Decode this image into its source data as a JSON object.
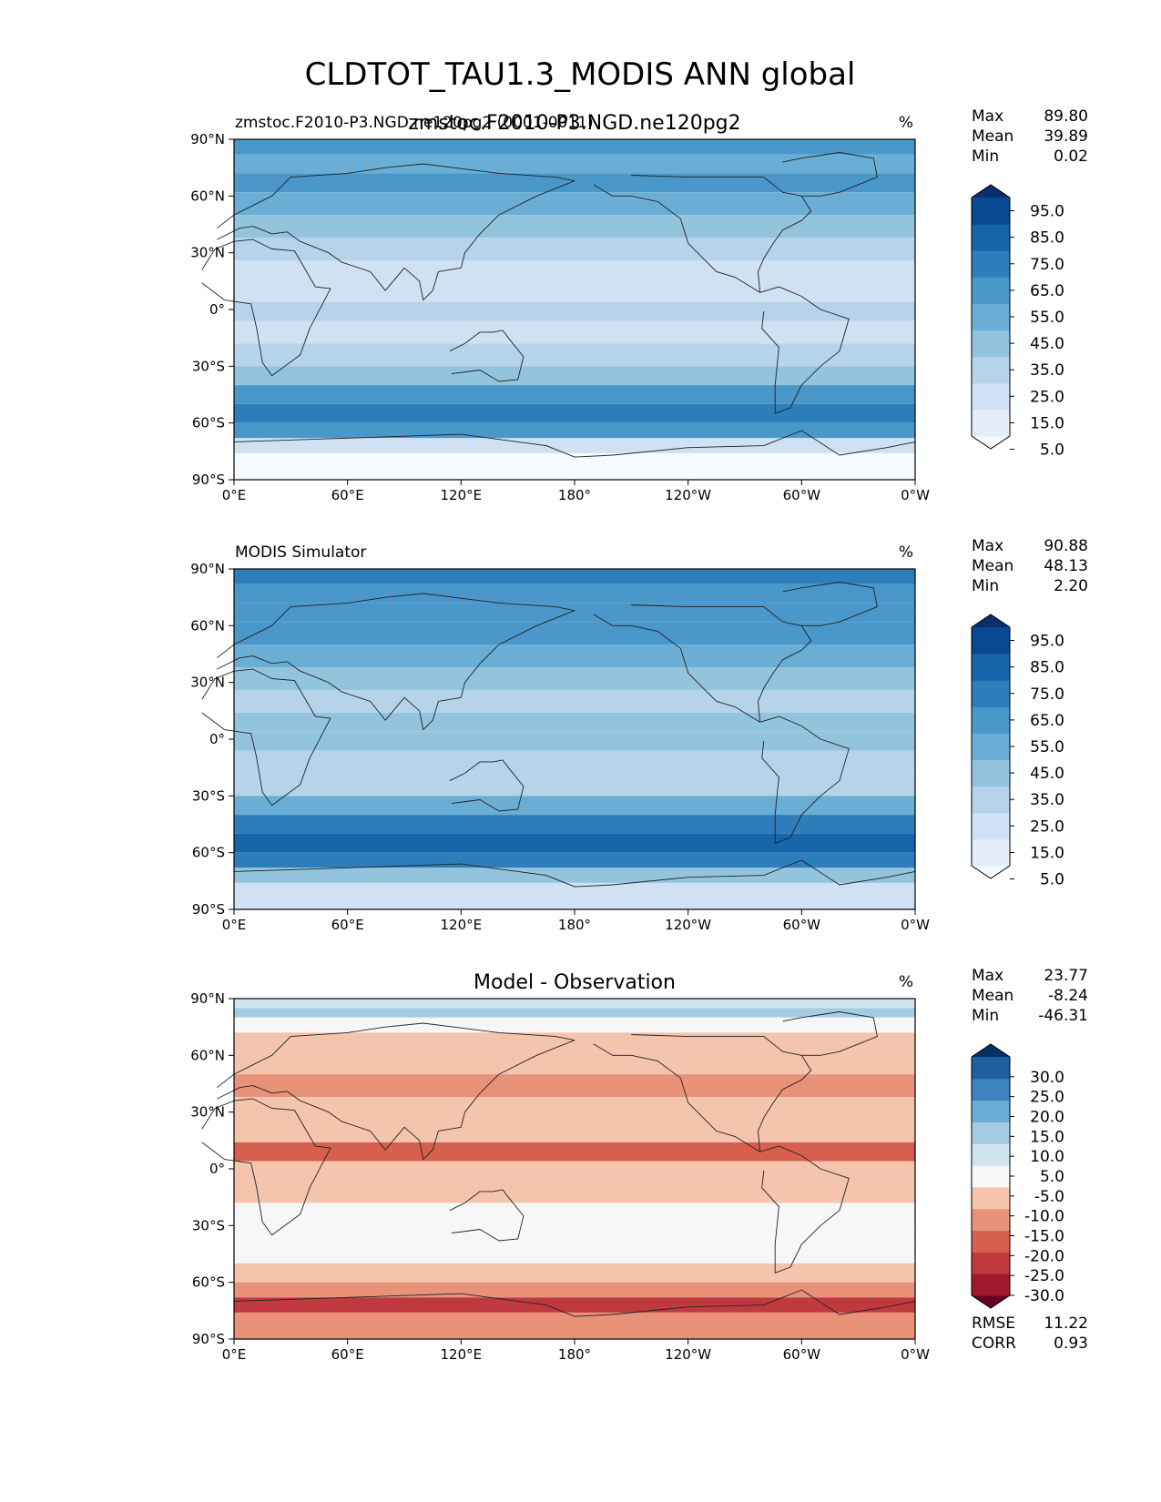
{
  "chart_data": {
    "type": "heatmap",
    "title": "CLDTOT_TAU1.3_MODIS ANN global",
    "x_ticks": [
      "0°E",
      "60°E",
      "120°E",
      "180°",
      "120°W",
      "60°W",
      "0°W"
    ],
    "y_ticks": [
      "90°N",
      "60°N",
      "30°N",
      "0°",
      "30°S",
      "60°S",
      "90°S"
    ],
    "xlim": [
      0,
      360
    ],
    "ylim": [
      -90,
      90
    ],
    "panels": [
      {
        "id": "test",
        "left_label": "zmstoc.F2010-P3.NGD.ne120pg2 (0001-0011)",
        "center_label": "zmstoc.F2010-P3.NGD.ne120pg2",
        "units": "%",
        "stats": [
          {
            "name": "Max",
            "value": "89.80"
          },
          {
            "name": "Mean",
            "value": "39.89"
          },
          {
            "name": "Min",
            "value": "0.02"
          }
        ],
        "colorbar": {
          "ticks": [
            "95.0",
            "85.0",
            "75.0",
            "65.0",
            "55.0",
            "45.0",
            "35.0",
            "25.0",
            "15.0",
            "5.0"
          ],
          "colors": [
            "#f7fbff",
            "#e3eef9",
            "#cfe1f2",
            "#b5d4e9",
            "#93c4de",
            "#6aaed6",
            "#4a98c9",
            "#2e7ebc",
            "#1764ab",
            "#084a91",
            "#08306b"
          ]
        },
        "bands": [
          {
            "lat": [
              90,
              82
            ],
            "value": 65
          },
          {
            "lat": [
              82,
              72
            ],
            "value": 55
          },
          {
            "lat": [
              72,
              62
            ],
            "value": 60
          },
          {
            "lat": [
              62,
              50
            ],
            "value": 55
          },
          {
            "lat": [
              50,
              38
            ],
            "value": 45
          },
          {
            "lat": [
              38,
              26
            ],
            "value": 32
          },
          {
            "lat": [
              26,
              14
            ],
            "value": 22
          },
          {
            "lat": [
              14,
              4
            ],
            "value": 28
          },
          {
            "lat": [
              4,
              -6
            ],
            "value": 32
          },
          {
            "lat": [
              -6,
              -18
            ],
            "value": 28
          },
          {
            "lat": [
              -18,
              -30
            ],
            "value": 32
          },
          {
            "lat": [
              -30,
              -40
            ],
            "value": 48
          },
          {
            "lat": [
              -40,
              -50
            ],
            "value": 68
          },
          {
            "lat": [
              -50,
              -60
            ],
            "value": 78
          },
          {
            "lat": [
              -60,
              -68
            ],
            "value": 62
          },
          {
            "lat": [
              -68,
              -76
            ],
            "value": 25
          },
          {
            "lat": [
              -76,
              -90
            ],
            "value": 8
          }
        ]
      },
      {
        "id": "reference",
        "left_label": "MODIS Simulator",
        "center_label": "",
        "units": "%",
        "stats": [
          {
            "name": "Max",
            "value": "90.88"
          },
          {
            "name": "Mean",
            "value": "48.13"
          },
          {
            "name": "Min",
            "value": "2.20"
          }
        ],
        "colorbar": {
          "ticks": [
            "95.0",
            "85.0",
            "75.0",
            "65.0",
            "55.0",
            "45.0",
            "35.0",
            "25.0",
            "15.0",
            "5.0"
          ],
          "colors": [
            "#f7fbff",
            "#e3eef9",
            "#cfe1f2",
            "#b5d4e9",
            "#93c4de",
            "#6aaed6",
            "#4a98c9",
            "#2e7ebc",
            "#1764ab",
            "#084a91",
            "#08306b"
          ]
        },
        "bands": [
          {
            "lat": [
              90,
              82
            ],
            "value": 72
          },
          {
            "lat": [
              82,
              72
            ],
            "value": 62
          },
          {
            "lat": [
              72,
              62
            ],
            "value": 68
          },
          {
            "lat": [
              62,
              50
            ],
            "value": 65
          },
          {
            "lat": [
              50,
              38
            ],
            "value": 58
          },
          {
            "lat": [
              38,
              26
            ],
            "value": 42
          },
          {
            "lat": [
              26,
              14
            ],
            "value": 32
          },
          {
            "lat": [
              14,
              4
            ],
            "value": 48
          },
          {
            "lat": [
              4,
              -6
            ],
            "value": 40
          },
          {
            "lat": [
              -6,
              -18
            ],
            "value": 35
          },
          {
            "lat": [
              -18,
              -30
            ],
            "value": 38
          },
          {
            "lat": [
              -30,
              -40
            ],
            "value": 55
          },
          {
            "lat": [
              -40,
              -50
            ],
            "value": 75
          },
          {
            "lat": [
              -50,
              -60
            ],
            "value": 85
          },
          {
            "lat": [
              -60,
              -68
            ],
            "value": 72
          },
          {
            "lat": [
              -68,
              -76
            ],
            "value": 48
          },
          {
            "lat": [
              -76,
              -90
            ],
            "value": 22
          }
        ]
      },
      {
        "id": "diff",
        "left_label": "",
        "center_label": "Model - Observation",
        "units": "%",
        "stats": [
          {
            "name": "Max",
            "value": "23.77"
          },
          {
            "name": "Mean",
            "value": "-8.24"
          },
          {
            "name": "Min",
            "value": "-46.31"
          }
        ],
        "colorbar": {
          "ticks": [
            "30.0",
            "25.0",
            "20.0",
            "15.0",
            "10.0",
            "5.0",
            "-5.0",
            "-10.0",
            "-15.0",
            "-20.0",
            "-25.0",
            "-30.0"
          ],
          "colors": [
            "#67001f",
            "#9e1a2a",
            "#c0393e",
            "#d6604d",
            "#e9927a",
            "#f5c4ad",
            "#f7f7f7",
            "#d1e5f0",
            "#a5cce3",
            "#6aaed6",
            "#3b84bf",
            "#1f5fa0",
            "#053061"
          ]
        },
        "bands": [
          {
            "lat": [
              90,
              85
            ],
            "value": 8
          },
          {
            "lat": [
              85,
              80
            ],
            "value": 12
          },
          {
            "lat": [
              80,
              72
            ],
            "value": -3
          },
          {
            "lat": [
              72,
              62
            ],
            "value": -8
          },
          {
            "lat": [
              62,
              50
            ],
            "value": -10
          },
          {
            "lat": [
              50,
              38
            ],
            "value": -12
          },
          {
            "lat": [
              38,
              26
            ],
            "value": -8
          },
          {
            "lat": [
              26,
              14
            ],
            "value": -7
          },
          {
            "lat": [
              14,
              4
            ],
            "value": -20
          },
          {
            "lat": [
              4,
              -6
            ],
            "value": -9
          },
          {
            "lat": [
              -6,
              -18
            ],
            "value": -7
          },
          {
            "lat": [
              -18,
              -30
            ],
            "value": -5
          },
          {
            "lat": [
              -30,
              -40
            ],
            "value": -4
          },
          {
            "lat": [
              -40,
              -50
            ],
            "value": -3
          },
          {
            "lat": [
              -50,
              -60
            ],
            "value": -8
          },
          {
            "lat": [
              -60,
              -68
            ],
            "value": -12
          },
          {
            "lat": [
              -68,
              -76
            ],
            "value": -22
          },
          {
            "lat": [
              -76,
              -90
            ],
            "value": -14
          }
        ],
        "extra_stats": [
          {
            "name": "RMSE",
            "value": "11.22"
          },
          {
            "name": "CORR",
            "value": "0.93"
          }
        ]
      }
    ]
  }
}
